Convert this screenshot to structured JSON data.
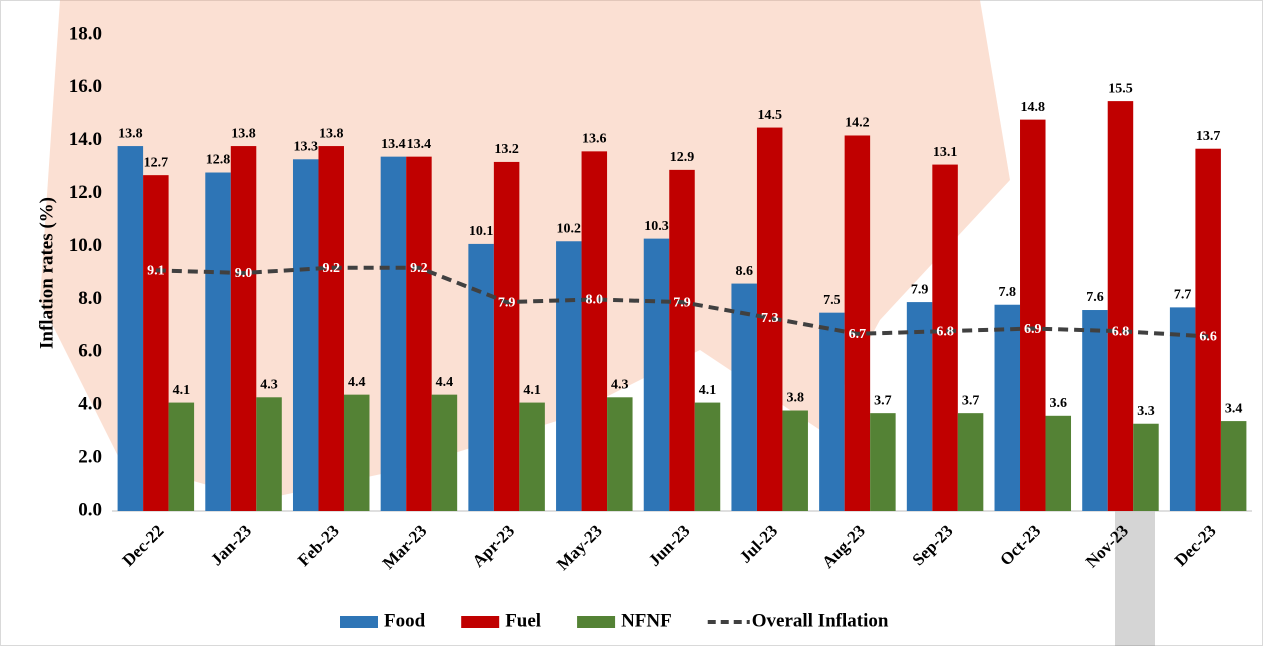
{
  "chart_data": {
    "type": "bar-line",
    "y_label": "Inflation rates (%)",
    "categories": [
      "Dec-22",
      "Jan-23",
      "Feb-23",
      "Mar-23",
      "Apr-23",
      "May-23",
      "Jun-23",
      "Jul-23",
      "Aug-23",
      "Sep-23",
      "Oct-23",
      "Nov-23",
      "Dec-23"
    ],
    "ylim": [
      0,
      18
    ],
    "yticks": [
      {
        "value": 0,
        "label": "0.0"
      },
      {
        "value": 2,
        "label": "2.0"
      },
      {
        "value": 4,
        "label": "4.0"
      },
      {
        "value": 6,
        "label": "6.0"
      },
      {
        "value": 8,
        "label": "8.0"
      },
      {
        "value": 10,
        "label": "10.0"
      },
      {
        "value": 12,
        "label": "12.0"
      },
      {
        "value": 14,
        "label": "14.0"
      },
      {
        "value": 16,
        "label": "16.0"
      },
      {
        "value": 18,
        "label": "18.0"
      }
    ],
    "series": [
      {
        "name": "Food",
        "type": "bar",
        "color": "#2e75b6",
        "values": [
          13.8,
          12.8,
          13.3,
          13.4,
          10.1,
          10.2,
          10.3,
          8.6,
          7.5,
          7.9,
          7.8,
          7.6,
          7.7
        ],
        "value_labels": [
          "13.8",
          "12.8",
          "13.3",
          "13.4",
          "10.1",
          "10.2",
          "10.3",
          "8.6",
          "7.5",
          "7.9",
          "7.8",
          "7.6",
          "7.7"
        ]
      },
      {
        "name": "Fuel",
        "type": "bar",
        "color": "#c00000",
        "values": [
          12.7,
          13.8,
          13.8,
          13.4,
          13.2,
          13.6,
          12.9,
          14.5,
          14.2,
          13.1,
          14.8,
          15.5,
          13.7
        ],
        "value_labels": [
          "12.7",
          "13.8",
          "13.8",
          "13.4",
          "13.2",
          "13.6",
          "12.9",
          "14.5",
          "14.2",
          "13.1",
          "14.8",
          "15.5",
          "13.7"
        ]
      },
      {
        "name": "NFNF",
        "type": "bar",
        "color": "#548235",
        "values": [
          4.1,
          4.3,
          4.4,
          4.4,
          4.1,
          4.3,
          4.1,
          3.8,
          3.7,
          3.7,
          3.6,
          3.3,
          3.4
        ],
        "value_labels": [
          "4.1",
          "4.3",
          "4.4",
          "4.4",
          "4.1",
          "4.3",
          "4.1",
          "3.8",
          "3.7",
          "3.7",
          "3.6",
          "3.3",
          "3.4"
        ]
      },
      {
        "name": "Overall Inflation",
        "type": "line",
        "color": "#404040",
        "values": [
          9.1,
          9.0,
          9.2,
          9.2,
          7.9,
          8.0,
          7.9,
          7.3,
          6.7,
          6.8,
          6.9,
          6.8,
          6.6
        ],
        "value_labels": [
          "9.1",
          "9.0",
          "9.2",
          "9.2",
          "7.9",
          "8.0",
          "7.9",
          "7.3",
          "6.7",
          "6.8",
          "6.9",
          "6.8",
          "6.6"
        ]
      }
    ]
  }
}
